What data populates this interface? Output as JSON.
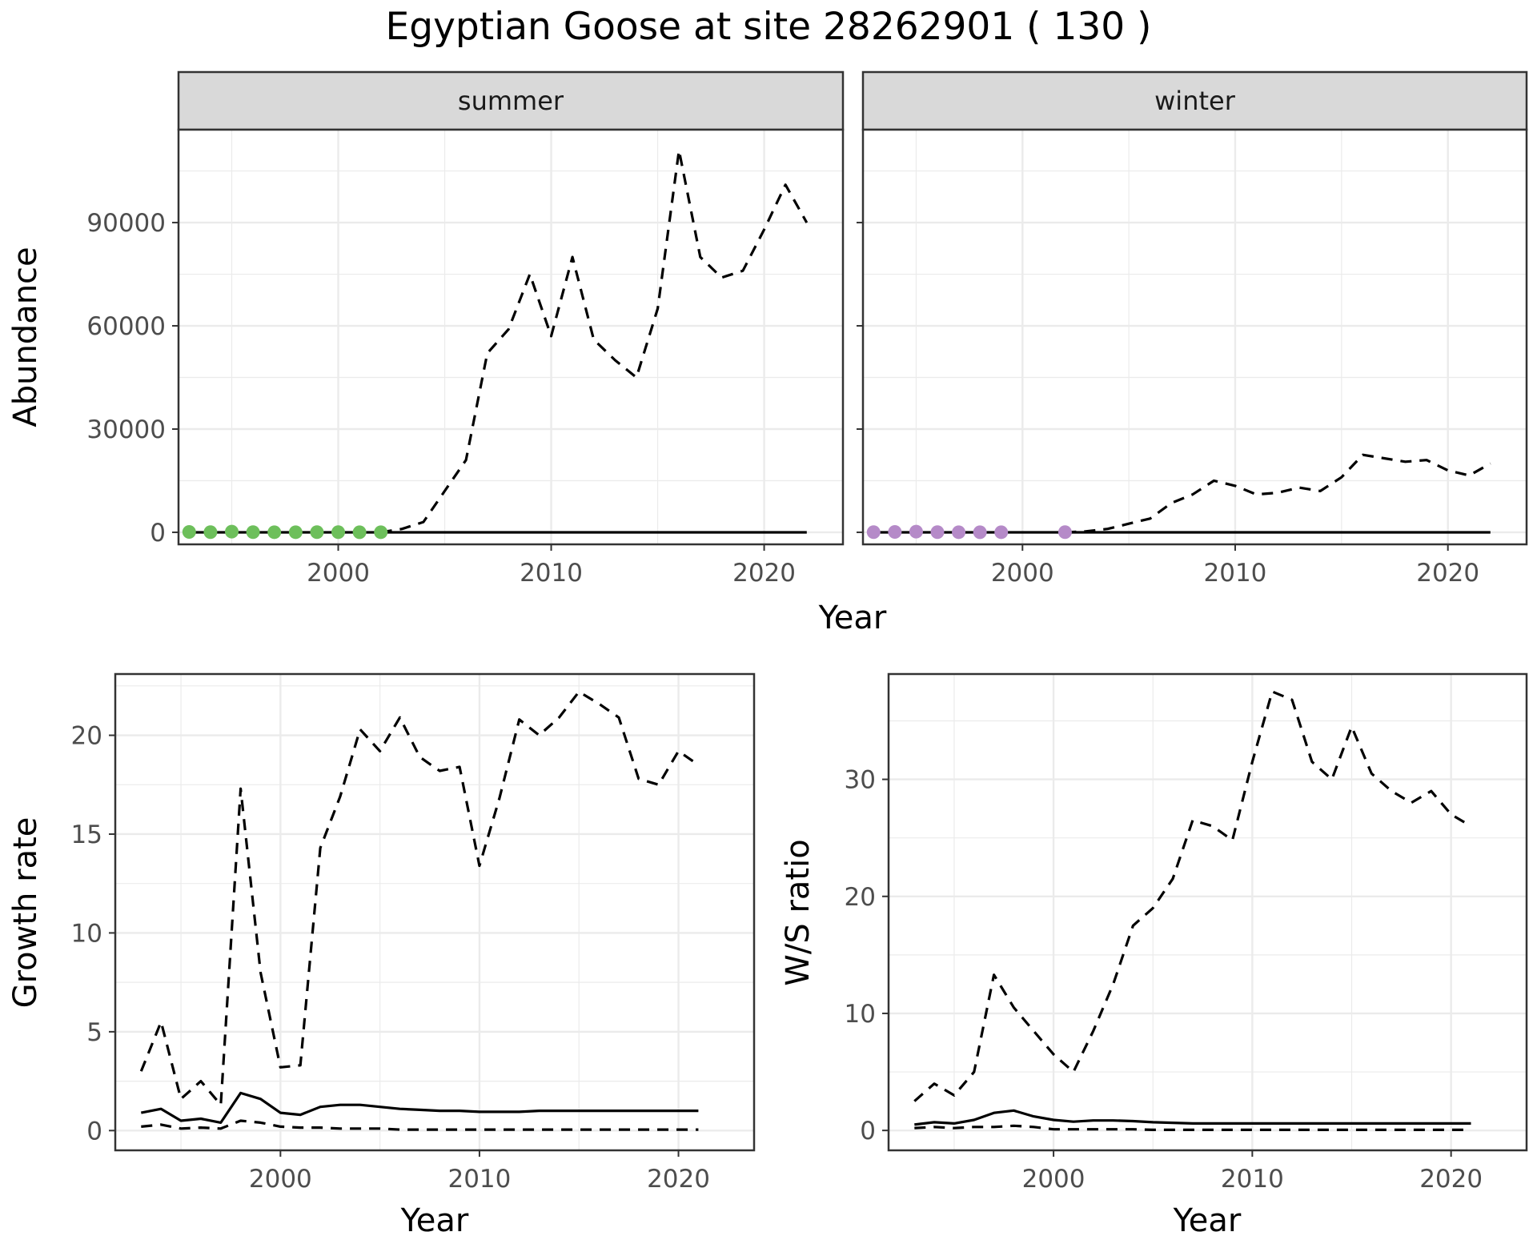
{
  "title": "Egyptian Goose at site 28262901 ( 130 )",
  "colors": {
    "summer_points": "#6dbf5b",
    "winter_points": "#b58ac8",
    "strip_bg": "#d9d9d9",
    "grid": "#ebebeb",
    "line": "#000000"
  },
  "chart_data": [
    {
      "id": "abundance-summer",
      "type": "line",
      "facet_label": "summer",
      "ylabel": "Abundance",
      "xlabel": "Year",
      "xlim": [
        1992.5,
        2023.7
      ],
      "ylim": [
        -3500,
        117000
      ],
      "x_ticks": [
        2000,
        2010,
        2020
      ],
      "y_ticks": [
        0,
        30000,
        60000,
        90000
      ],
      "series": [
        {
          "name": "upper",
          "style": "dashed",
          "x": [
            2002,
            2003,
            2004,
            2005,
            2006,
            2007,
            2008,
            2009,
            2010,
            2011,
            2012,
            2013,
            2014,
            2015,
            2016,
            2017,
            2018,
            2019,
            2020,
            2021,
            2022
          ],
          "y": [
            0,
            1000,
            3000,
            12000,
            21000,
            52000,
            59000,
            75000,
            57000,
            80000,
            56000,
            50000,
            45000,
            65000,
            111000,
            80000,
            74000,
            76000,
            88000,
            101000,
            90000
          ]
        },
        {
          "name": "estimate",
          "style": "solid",
          "x": [
            1993,
            2022
          ],
          "y": [
            0,
            0
          ]
        },
        {
          "name": "observed",
          "style": "points",
          "color": "#6dbf5b",
          "x": [
            1993,
            1994,
            1995,
            1996,
            1997,
            1998,
            1999,
            2000,
            2001,
            2002
          ],
          "y": [
            100,
            50,
            200,
            50,
            30,
            30,
            40,
            50,
            20,
            30
          ]
        }
      ]
    },
    {
      "id": "abundance-winter",
      "type": "line",
      "facet_label": "winter",
      "ylabel": "",
      "xlabel": "Year",
      "xlim": [
        1992.5,
        2023.7
      ],
      "ylim": [
        -3500,
        117000
      ],
      "x_ticks": [
        2000,
        2010,
        2020
      ],
      "y_ticks": [
        0,
        30000,
        60000,
        90000
      ],
      "series": [
        {
          "name": "upper",
          "style": "dashed",
          "x": [
            2002,
            2003,
            2004,
            2005,
            2006,
            2007,
            2008,
            2009,
            2010,
            2011,
            2012,
            2013,
            2014,
            2015,
            2016,
            2017,
            2018,
            2019,
            2020,
            2021,
            2022
          ],
          "y": [
            0,
            300,
            1000,
            2500,
            4000,
            8500,
            11000,
            15000,
            13500,
            11000,
            11500,
            13000,
            12000,
            16000,
            22500,
            21500,
            20500,
            21000,
            18000,
            16500,
            20000
          ]
        },
        {
          "name": "estimate",
          "style": "solid",
          "x": [
            1993,
            2022
          ],
          "y": [
            0,
            0
          ]
        },
        {
          "name": "observed",
          "style": "points",
          "color": "#b58ac8",
          "x": [
            1993,
            1994,
            1995,
            1996,
            1997,
            1998,
            1999,
            2002
          ],
          "y": [
            50,
            100,
            200,
            50,
            30,
            20,
            30,
            40
          ]
        }
      ]
    },
    {
      "id": "growth-rate",
      "type": "line",
      "ylabel": "Growth rate",
      "xlabel": "Year",
      "xlim": [
        1991.7,
        2023.8
      ],
      "ylim": [
        -1.0,
        23.1
      ],
      "x_ticks": [
        2000,
        2010,
        2020
      ],
      "y_ticks": [
        0,
        5,
        10,
        15,
        20
      ],
      "series": [
        {
          "name": "upper",
          "style": "dashed",
          "x": [
            1993,
            1994,
            1995,
            1996,
            1997,
            1998,
            1999,
            2000,
            2001,
            2002,
            2003,
            2004,
            2005,
            2006,
            2007,
            2008,
            2009,
            2010,
            2011,
            2012,
            2013,
            2014,
            2015,
            2016,
            2017,
            2018,
            2019,
            2020,
            2021
          ],
          "y": [
            3.0,
            5.5,
            1.6,
            2.5,
            1.3,
            17.3,
            8.0,
            3.2,
            3.3,
            14.3,
            16.9,
            20.3,
            19.2,
            20.9,
            18.9,
            18.2,
            18.4,
            13.4,
            16.8,
            20.8,
            20.0,
            20.9,
            22.2,
            21.6,
            20.9,
            17.8,
            17.5,
            19.2,
            18.5
          ]
        },
        {
          "name": "estimate",
          "style": "solid",
          "x": [
            1993,
            1994,
            1995,
            1996,
            1997,
            1998,
            1999,
            2000,
            2001,
            2002,
            2003,
            2004,
            2005,
            2006,
            2007,
            2008,
            2009,
            2010,
            2011,
            2012,
            2013,
            2014,
            2015,
            2016,
            2017,
            2018,
            2019,
            2020,
            2021
          ],
          "y": [
            0.9,
            1.1,
            0.5,
            0.6,
            0.4,
            1.9,
            1.6,
            0.9,
            0.8,
            1.2,
            1.3,
            1.3,
            1.2,
            1.1,
            1.05,
            1.0,
            1.0,
            0.95,
            0.95,
            0.95,
            1.0,
            1.0,
            1.0,
            1.0,
            1.0,
            1.0,
            1.0,
            1.0,
            1.0
          ]
        },
        {
          "name": "lower",
          "style": "dashed",
          "x": [
            1993,
            1994,
            1995,
            1996,
            1997,
            1998,
            1999,
            2000,
            2001,
            2002,
            2003,
            2004,
            2005,
            2006,
            2007,
            2008,
            2009,
            2010,
            2011,
            2012,
            2013,
            2014,
            2015,
            2016,
            2017,
            2018,
            2019,
            2020,
            2021
          ],
          "y": [
            0.2,
            0.3,
            0.1,
            0.15,
            0.1,
            0.5,
            0.4,
            0.2,
            0.15,
            0.15,
            0.1,
            0.1,
            0.1,
            0.05,
            0.05,
            0.05,
            0.05,
            0.05,
            0.05,
            0.05,
            0.05,
            0.05,
            0.05,
            0.05,
            0.05,
            0.05,
            0.05,
            0.05,
            0.05
          ]
        }
      ]
    },
    {
      "id": "ws-ratio",
      "type": "line",
      "ylabel": "W/S ratio",
      "xlabel": "Year",
      "xlim": [
        1991.7,
        2023.8
      ],
      "ylim": [
        -1.7,
        39.0
      ],
      "x_ticks": [
        2000,
        2010,
        2020
      ],
      "y_ticks": [
        0,
        10,
        20,
        30
      ],
      "series": [
        {
          "name": "upper",
          "style": "dashed",
          "x": [
            1993,
            1994,
            1995,
            1996,
            1997,
            1998,
            1999,
            2000,
            2001,
            2002,
            2003,
            2004,
            2005,
            2006,
            2007,
            2008,
            2009,
            2010,
            2011,
            2012,
            2013,
            2014,
            2015,
            2016,
            2017,
            2018,
            2019,
            2020,
            2021
          ],
          "y": [
            2.5,
            4.0,
            3.0,
            5.0,
            13.3,
            10.5,
            8.5,
            6.5,
            5.0,
            8.5,
            12.5,
            17.5,
            19.0,
            21.5,
            26.5,
            26.0,
            24.8,
            31.5,
            37.5,
            36.8,
            31.5,
            30.0,
            34.5,
            30.5,
            29.0,
            28.0,
            29.0,
            27.0,
            26.0
          ]
        },
        {
          "name": "estimate",
          "style": "solid",
          "x": [
            1993,
            1994,
            1995,
            1996,
            1997,
            1998,
            1999,
            2000,
            2001,
            2002,
            2003,
            2004,
            2005,
            2006,
            2007,
            2008,
            2009,
            2010,
            2011,
            2012,
            2013,
            2014,
            2015,
            2016,
            2017,
            2018,
            2019,
            2020,
            2021
          ],
          "y": [
            0.5,
            0.7,
            0.6,
            0.9,
            1.5,
            1.7,
            1.2,
            0.9,
            0.75,
            0.85,
            0.85,
            0.8,
            0.7,
            0.65,
            0.6,
            0.6,
            0.6,
            0.6,
            0.6,
            0.6,
            0.6,
            0.6,
            0.6,
            0.6,
            0.6,
            0.6,
            0.6,
            0.6,
            0.6
          ]
        },
        {
          "name": "lower",
          "style": "dashed",
          "x": [
            1993,
            1994,
            1995,
            1996,
            1997,
            1998,
            1999,
            2000,
            2001,
            2002,
            2003,
            2004,
            2005,
            2006,
            2007,
            2008,
            2009,
            2010,
            2011,
            2012,
            2013,
            2014,
            2015,
            2016,
            2017,
            2018,
            2019,
            2020,
            2021
          ],
          "y": [
            0.2,
            0.3,
            0.2,
            0.3,
            0.3,
            0.4,
            0.3,
            0.1,
            0.1,
            0.1,
            0.1,
            0.1,
            0.05,
            0.05,
            0.05,
            0.05,
            0.05,
            0.05,
            0.05,
            0.05,
            0.05,
            0.05,
            0.05,
            0.05,
            0.05,
            0.05,
            0.05,
            0.05,
            0.05
          ]
        }
      ]
    }
  ]
}
